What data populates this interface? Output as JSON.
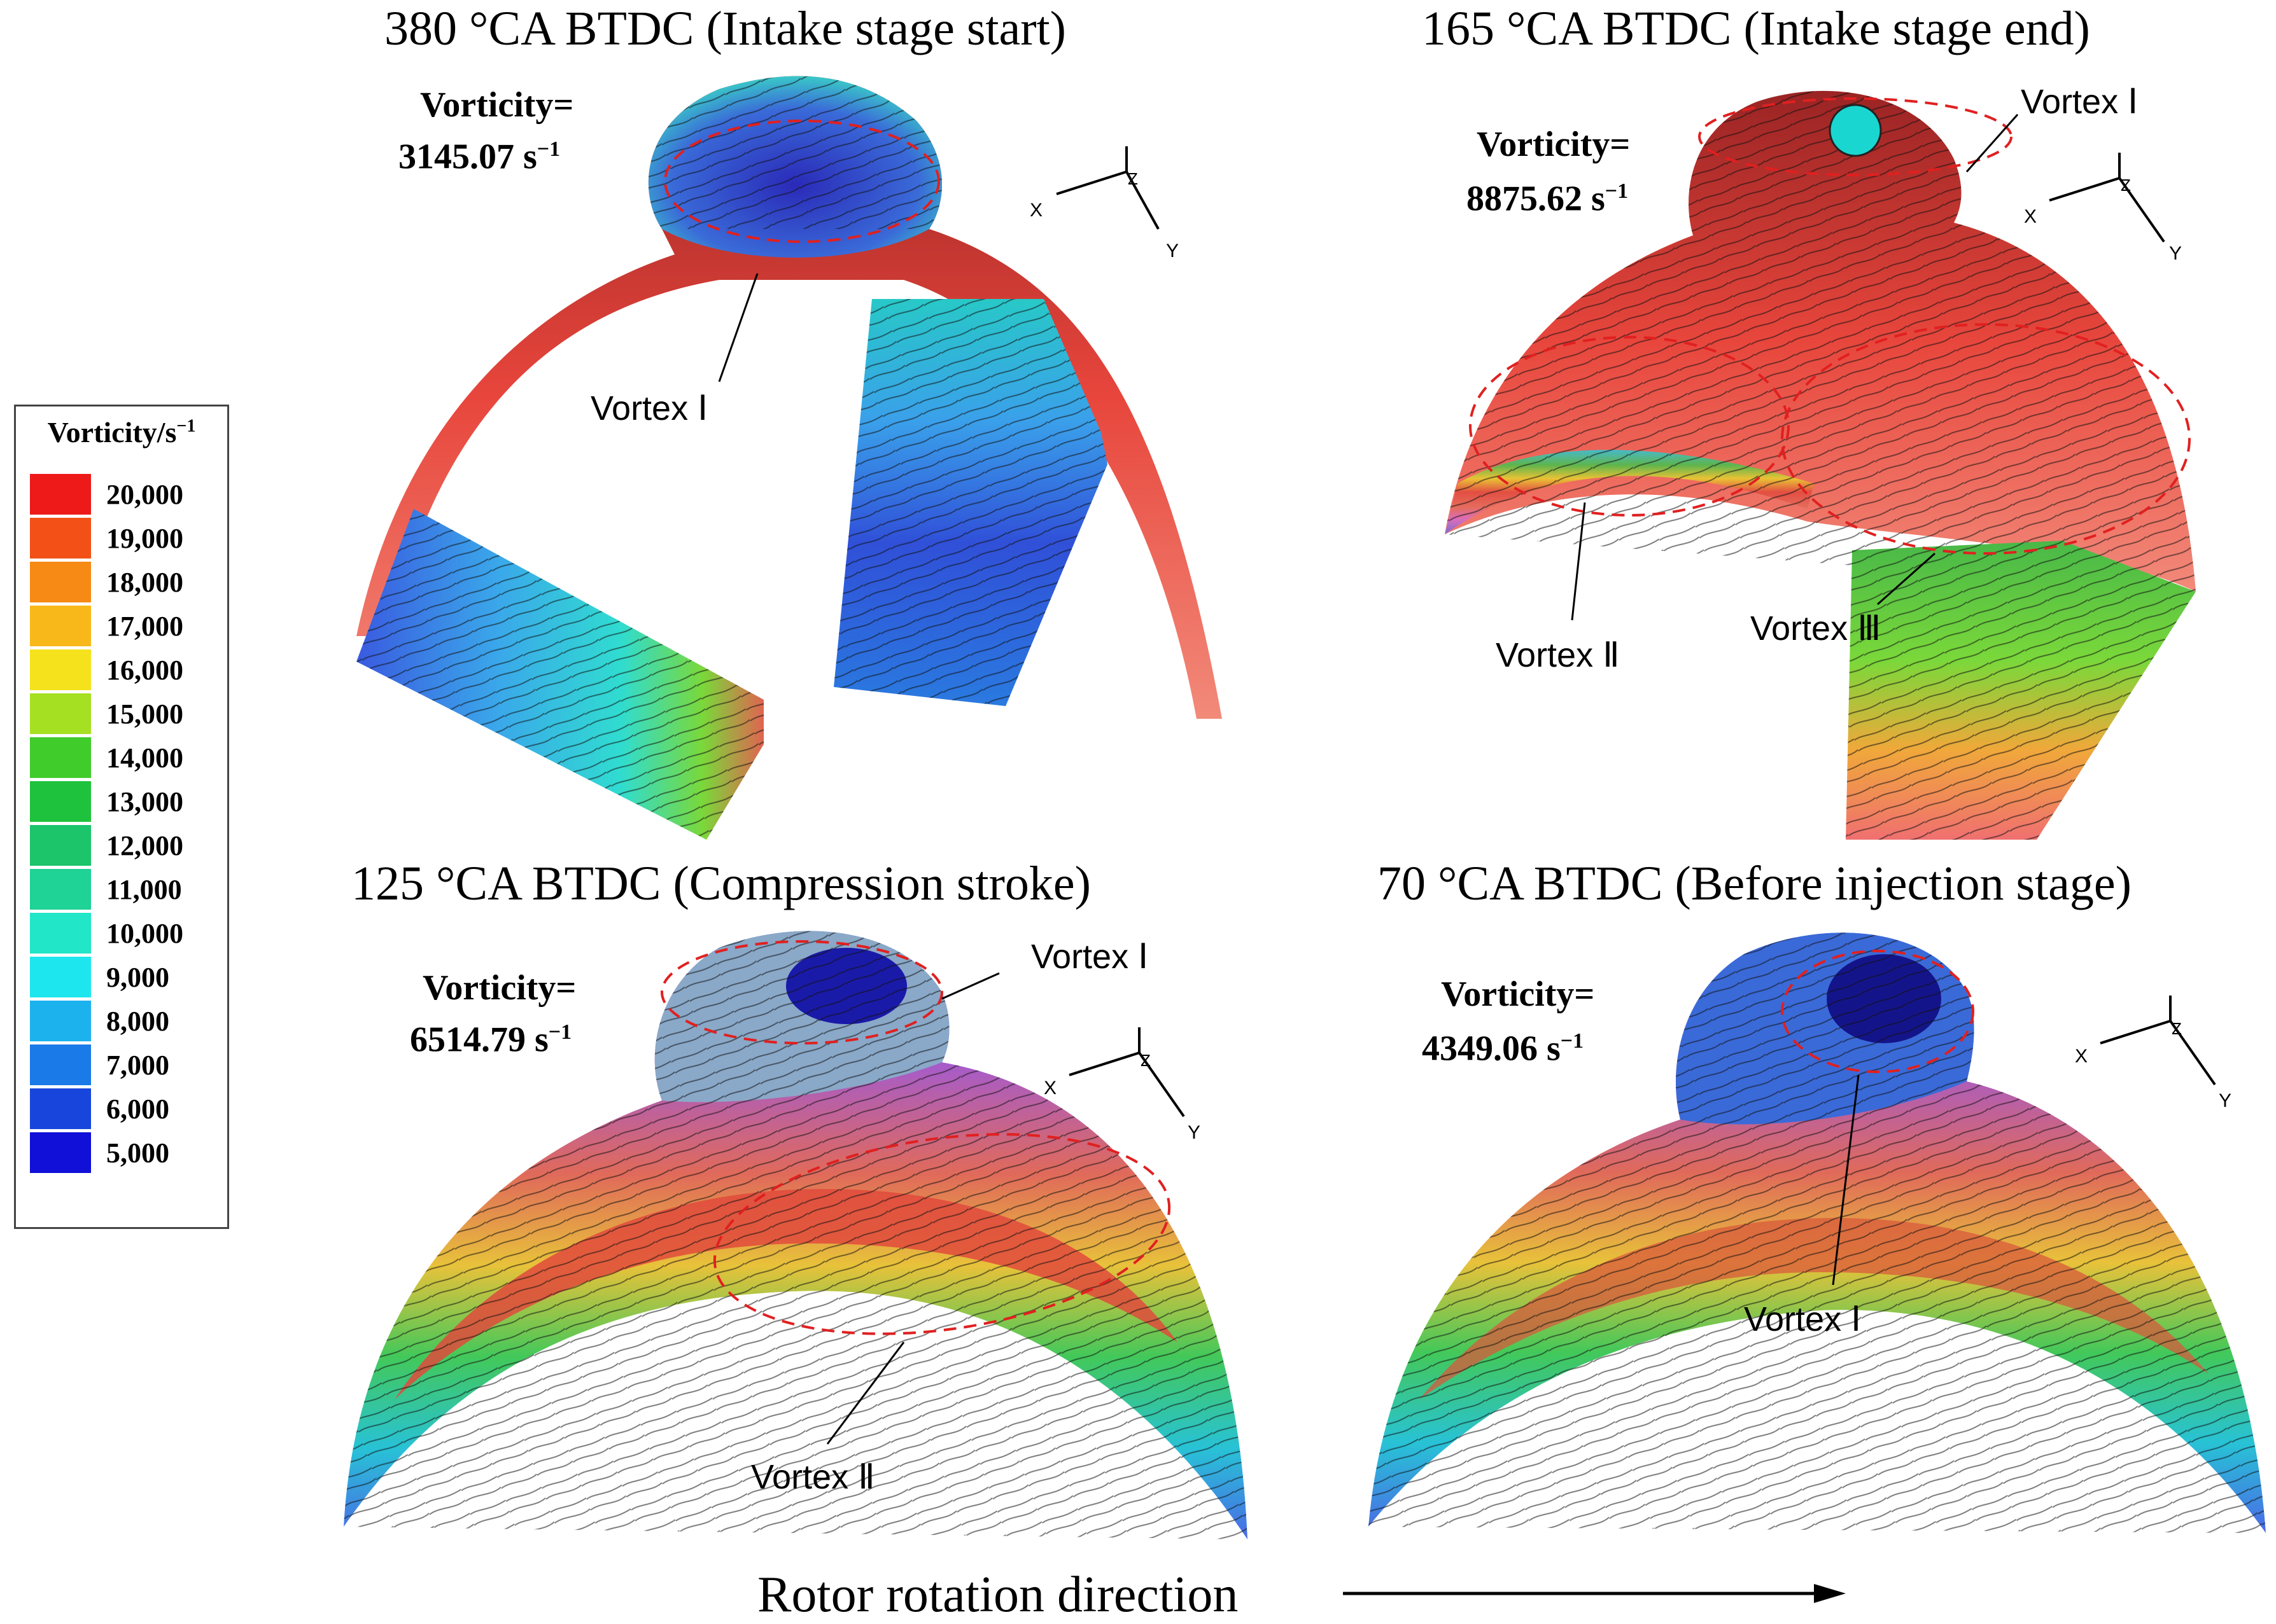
{
  "legend": {
    "title": "Vorticity/s",
    "title_sup": "−1",
    "items": [
      {
        "label": "20,000",
        "color": "#ee1a1a"
      },
      {
        "label": "19,000",
        "color": "#f25016"
      },
      {
        "label": "18,000",
        "color": "#f68a14"
      },
      {
        "label": "17,000",
        "color": "#f9b81a"
      },
      {
        "label": "16,000",
        "color": "#f5e21c"
      },
      {
        "label": "15,000",
        "color": "#a6e022"
      },
      {
        "label": "14,000",
        "color": "#40cc2a"
      },
      {
        "label": "13,000",
        "color": "#1fc23c"
      },
      {
        "label": "12,000",
        "color": "#1cc46a"
      },
      {
        "label": "11,000",
        "color": "#1fd296"
      },
      {
        "label": "10,000",
        "color": "#22e6c8"
      },
      {
        "label": "9,000",
        "color": "#1ee6ee"
      },
      {
        "label": "8,000",
        "color": "#1cb2ee"
      },
      {
        "label": "7,000",
        "color": "#1a7ae8"
      },
      {
        "label": "6,000",
        "color": "#1846dc"
      },
      {
        "label": "5,000",
        "color": "#1010d8"
      }
    ]
  },
  "panels": {
    "p1": {
      "title": "380 °CA BTDC (Intake stage start)",
      "vort_word": "Vorticity=",
      "vort_value": "3145.07 s",
      "vort_sup": "−1",
      "vortex1": "Vortex Ⅰ"
    },
    "p2": {
      "title": "165 °CA BTDC (Intake stage end)",
      "vort_word": "Vorticity=",
      "vort_value": "8875.62 s",
      "vort_sup": "−1",
      "vortex1": "Vortex Ⅰ",
      "vortex2": "Vortex Ⅱ",
      "vortex3": "Vortex Ⅲ"
    },
    "p3": {
      "title": "125 °CA BTDC (Compression stroke)",
      "vort_word": "Vorticity=",
      "vort_value": "6514.79 s",
      "vort_sup": "−1",
      "vortex1": "Vortex Ⅰ",
      "vortex2": "Vortex Ⅱ"
    },
    "p4": {
      "title": "70 °CA BTDC (Before injection stage)",
      "vort_word": "Vorticity=",
      "vort_value": "4349.06 s",
      "vort_sup": "−1",
      "vortex1": "Vortex Ⅰ"
    }
  },
  "axes": {
    "x": "X",
    "y": "Y",
    "z": "Z"
  },
  "caption": "Rotor rotation direction"
}
